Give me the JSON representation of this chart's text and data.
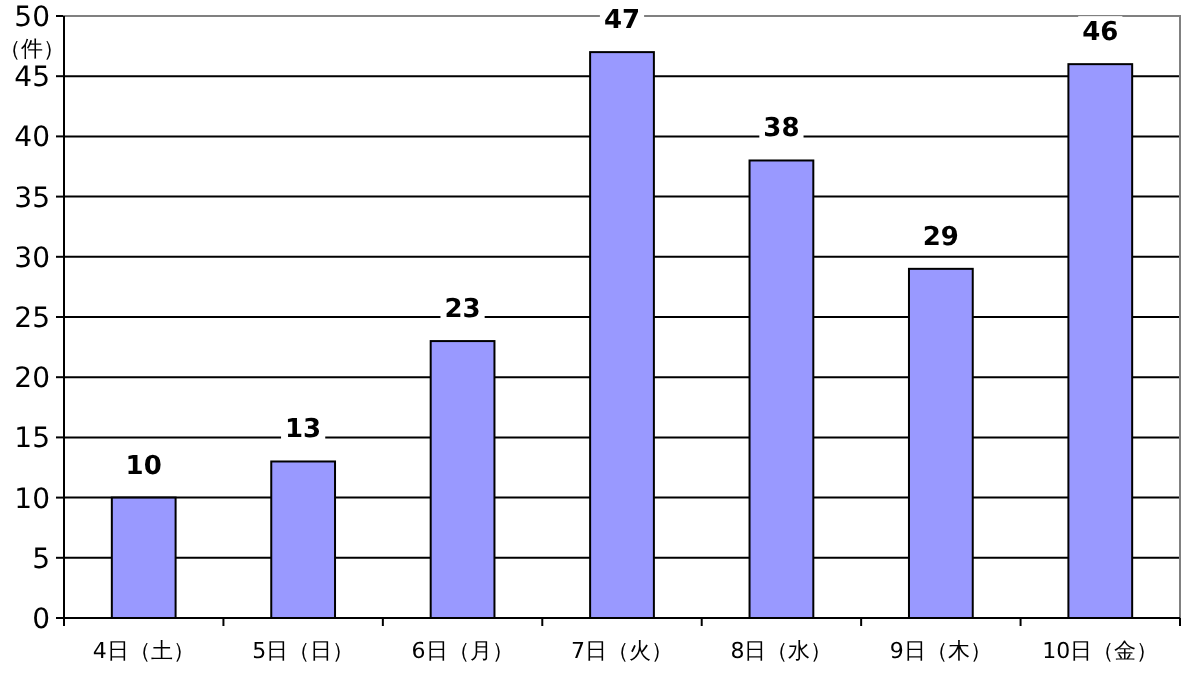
{
  "chart_data": {
    "type": "bar",
    "ylabel": "（件）",
    "categories": [
      "4日（土）",
      "5日（日）",
      "6日（月）",
      "7日（火）",
      "8日（水）",
      "9日（木）",
      "10日（金）"
    ],
    "series": [
      {
        "color": "#9999ff",
        "values": [
          10,
          13,
          23,
          47,
          38,
          29,
          46
        ]
      }
    ],
    "ylim": [
      0,
      50
    ],
    "yticks": [
      0,
      5,
      10,
      15,
      20,
      25,
      30,
      35,
      40,
      45,
      50
    ],
    "grid": "y",
    "data_labels": true
  }
}
